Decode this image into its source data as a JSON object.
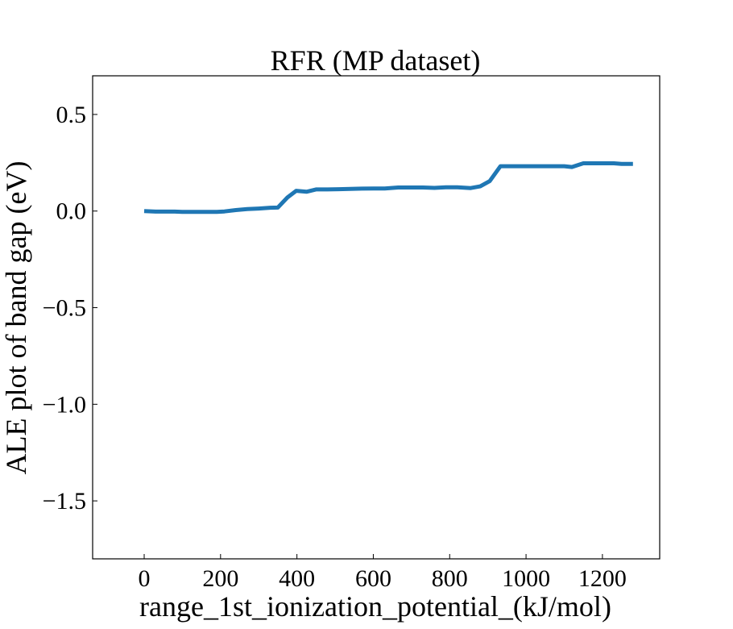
{
  "chart_data": {
    "type": "line",
    "title": "RFR (MP dataset)",
    "xlabel": "range_1st_ionization_potential_(kJ/mol)",
    "ylabel": "ALE plot of band gap (eV)",
    "xlim": [
      -135,
      1350
    ],
    "ylim": [
      -1.8,
      0.7
    ],
    "xticks": [
      0,
      200,
      400,
      600,
      800,
      1000,
      1200
    ],
    "xtick_labels": [
      "0",
      "200",
      "400",
      "600",
      "800",
      "1000",
      "1200"
    ],
    "yticks": [
      0.5,
      0.0,
      -0.5,
      -1.0,
      -1.5
    ],
    "ytick_labels": [
      "0.5",
      "0.0",
      "−0.5",
      "−1.0",
      "−1.5"
    ],
    "grid": false,
    "series": [
      {
        "color": "#1f77b4",
        "x": [
          0,
          30,
          60,
          80,
          100,
          130,
          160,
          190,
          210,
          240,
          270,
          300,
          330,
          350,
          375,
          398,
          425,
          450,
          480,
          510,
          540,
          570,
          600,
          630,
          665,
          700,
          730,
          760,
          790,
          820,
          855,
          880,
          905,
          933,
          960,
          1000,
          1040,
          1080,
          1100,
          1120,
          1150,
          1180,
          1200,
          1230,
          1250,
          1280
        ],
        "y": [
          0.0,
          -0.003,
          -0.003,
          -0.003,
          -0.004,
          -0.004,
          -0.004,
          -0.004,
          -0.002,
          0.005,
          0.01,
          0.013,
          0.017,
          0.018,
          0.07,
          0.105,
          0.1,
          0.112,
          0.112,
          0.113,
          0.115,
          0.116,
          0.117,
          0.117,
          0.122,
          0.122,
          0.122,
          0.12,
          0.123,
          0.123,
          0.119,
          0.128,
          0.155,
          0.232,
          0.232,
          0.232,
          0.232,
          0.232,
          0.232,
          0.228,
          0.247,
          0.247,
          0.247,
          0.247,
          0.244,
          0.244
        ]
      }
    ]
  }
}
